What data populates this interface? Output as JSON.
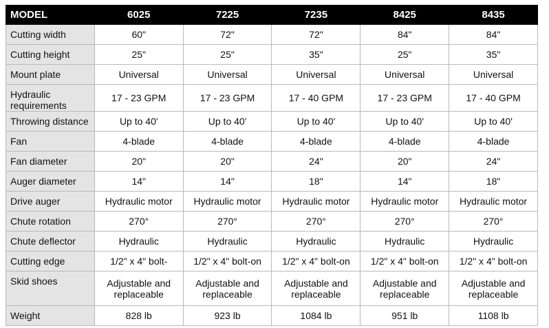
{
  "table": {
    "header": [
      "MODEL",
      "6025",
      "7225",
      "7235",
      "8425",
      "8435"
    ],
    "rows": [
      [
        "Cutting width",
        "60\"",
        "72\"",
        "72\"",
        "84\"",
        "84\""
      ],
      [
        "Cutting height",
        "25\"",
        "25\"",
        "35\"",
        "25\"",
        "35\""
      ],
      [
        "Mount plate",
        "Universal",
        "Universal",
        "Universal",
        "Universal",
        "Universal"
      ],
      [
        "Hydraulic requirements",
        "17 - 23 GPM",
        "17 - 23 GPM",
        "17 - 40 GPM",
        "17 - 23 GPM",
        "17 - 40 GPM"
      ],
      [
        "Throwing distance",
        "Up to 40'",
        "Up to 40'",
        "Up to 40'",
        "Up to 40'",
        "Up to 40'"
      ],
      [
        "Fan",
        "4-blade",
        "4-blade",
        "4-blade",
        "4-blade",
        "4-blade"
      ],
      [
        "Fan diameter",
        "20\"",
        "20\"",
        "24\"",
        "20\"",
        "24\""
      ],
      [
        "Auger diameter",
        "14\"",
        "14\"",
        "18\"",
        "14\"",
        "18\""
      ],
      [
        "Drive auger",
        "Hydraulic motor",
        "Hydraulic motor",
        "Hydraulic motor",
        "Hydraulic motor",
        "Hydraulic motor"
      ],
      [
        "Chute rotation",
        "270°",
        "270°",
        "270°",
        "270°",
        "270°"
      ],
      [
        "Chute deflector",
        "Hydraulic",
        "Hydraulic",
        "Hydraulic",
        "Hydraulic",
        "Hydraulic"
      ],
      [
        "Cutting edge",
        "1/2\" x 4\" bolt-",
        "1/2\" x 4\" bolt-on",
        "1/2\" x 4\" bolt-on",
        "1/2\" x 4\" bolt-on",
        "1/2\" x 4\" bolt-on"
      ],
      [
        "Skid shoes",
        "Adjustable and replaceable",
        "Adjustable and replaceable",
        "Adjustable and replaceable",
        "Adjustable and replaceable",
        "Adjustable and replaceable"
      ],
      [
        "Weight",
        "828 lb",
        "923 lb",
        "1084 lb",
        "951 lb",
        "1108 lb"
      ]
    ]
  }
}
